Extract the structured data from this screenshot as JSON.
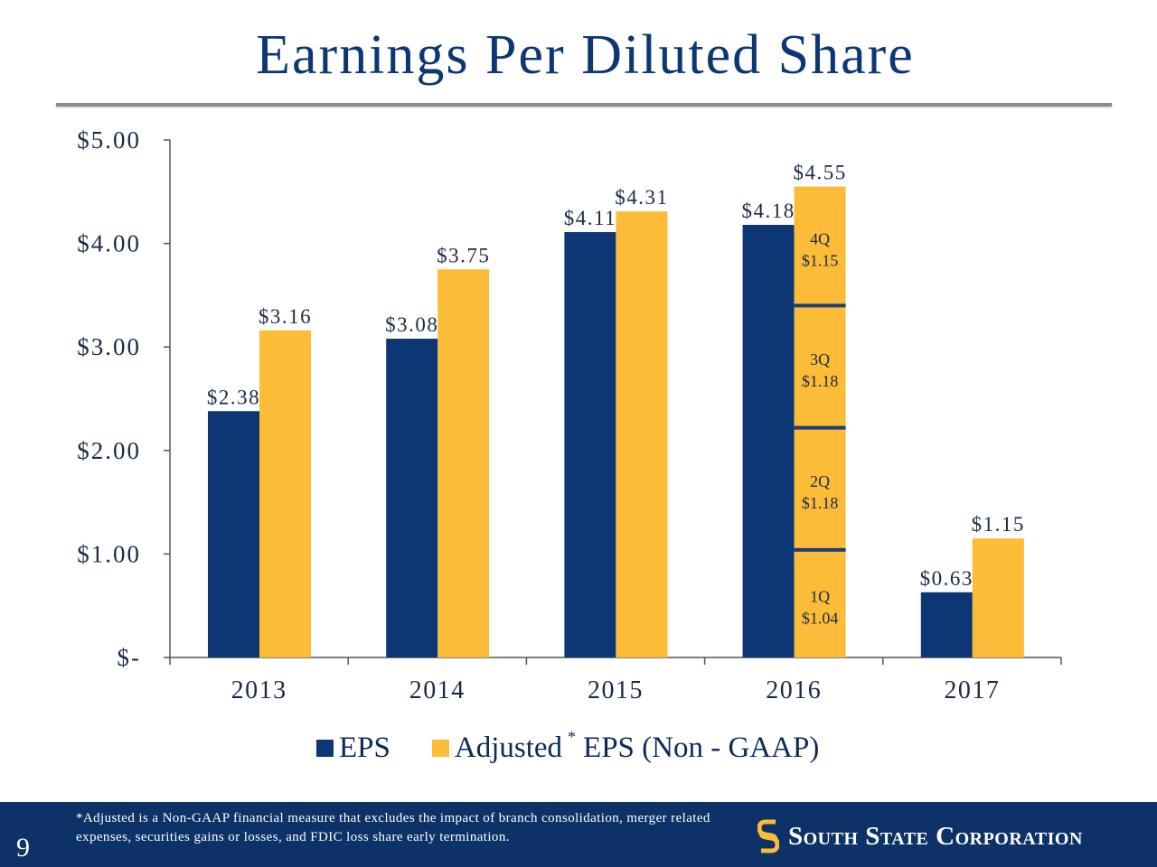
{
  "title": "Earnings Per Diluted Share",
  "colors": {
    "eps": "#0c3774",
    "adjusted": "#fcbc38",
    "segment_divider": "#1c3d78",
    "footer_bg": "#0c3268"
  },
  "legend": {
    "eps_label": "EPS",
    "adjusted_label": "Adjusted",
    "adjusted_marker": "*",
    "adjusted_suffix": "EPS (Non - GAAP)"
  },
  "chart_data": {
    "type": "bar",
    "categories": [
      "2013",
      "2014",
      "2015",
      "2016",
      "2017"
    ],
    "series": [
      {
        "name": "EPS",
        "values": [
          2.38,
          3.08,
          4.11,
          4.18,
          0.63
        ],
        "labels": [
          "$2.38",
          "$3.08",
          "$4.11",
          "$4.18",
          "$0.63"
        ]
      },
      {
        "name": "Adjusted* EPS (Non - GAAP)",
        "values": [
          3.16,
          3.75,
          4.31,
          4.55,
          1.15
        ],
        "labels": [
          "$3.16",
          "$3.75",
          "$4.31",
          "$4.55",
          "$1.15"
        ]
      }
    ],
    "quarterly_breakdown": {
      "category": "2016",
      "series": "Adjusted* EPS (Non - GAAP)",
      "segments": [
        {
          "quarter": "1Q",
          "value": 1.04,
          "label": "$1.04"
        },
        {
          "quarter": "2Q",
          "value": 1.18,
          "label": "$1.18"
        },
        {
          "quarter": "3Q",
          "value": 1.18,
          "label": "$1.18"
        },
        {
          "quarter": "4Q",
          "value": 1.15,
          "label": "$1.15"
        }
      ]
    },
    "yticks": [
      0,
      1,
      2,
      3,
      4,
      5
    ],
    "ytick_labels": [
      "$-",
      "$1.00",
      "$2.00",
      "$3.00",
      "$4.00",
      "$5.00"
    ],
    "ylim": [
      0,
      5
    ],
    "grid": false,
    "legend_position": "bottom"
  },
  "footer": {
    "page_number": "9",
    "footnote": "*Adjusted is a Non-GAAP financial measure that excludes the impact of branch consolidation, merger related expenses, securities gains or losses, and FDIC loss share early termination.",
    "company": "South State Corporation"
  }
}
